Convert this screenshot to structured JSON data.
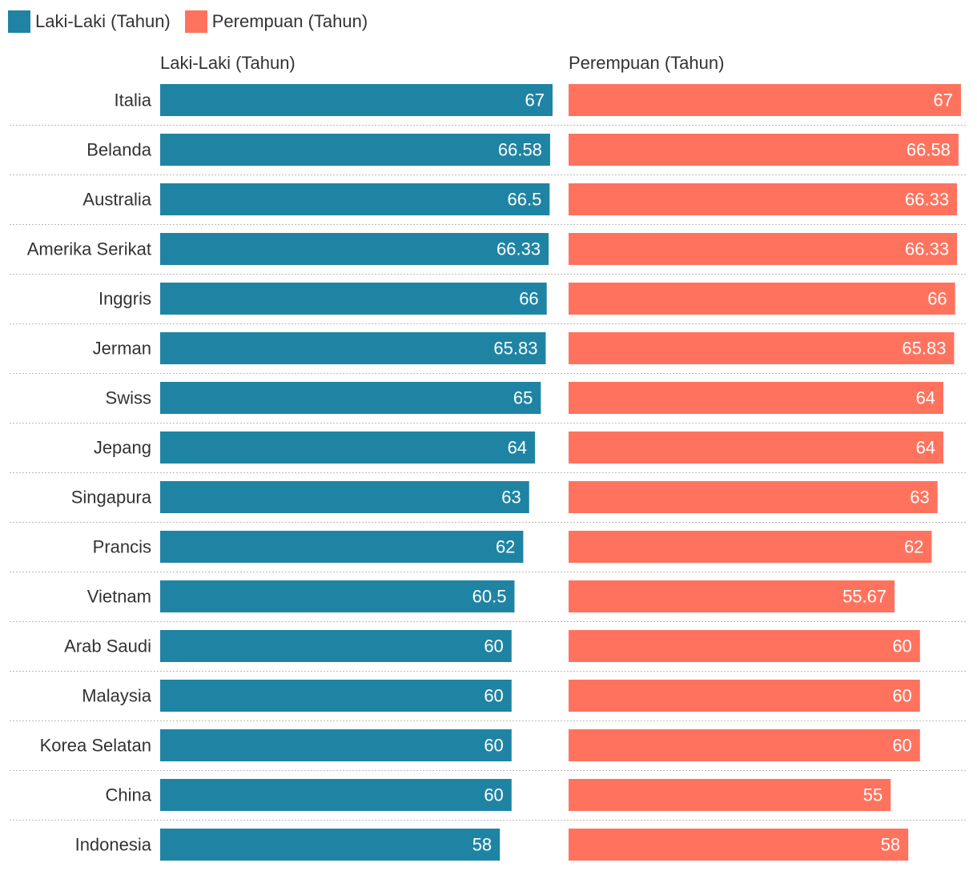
{
  "legend": {
    "male_label": "Laki-Laki (Tahun)",
    "female_label": "Perempuan (Tahun)"
  },
  "headers": {
    "male": "Laki-Laki (Tahun)",
    "female": "Perempuan (Tahun)"
  },
  "colors": {
    "male": "#1f84a3",
    "female": "#ff735e",
    "separator": "#bbbbbb",
    "text": "#333333"
  },
  "chart_data": {
    "type": "bar",
    "categories": [
      "Italia",
      "Belanda",
      "Australia",
      "Amerika Serikat",
      "Inggris",
      "Jerman",
      "Swiss",
      "Jepang",
      "Singapura",
      "Prancis",
      "Vietnam",
      "Arab Saudi",
      "Malaysia",
      "Korea Selatan",
      "China",
      "Indonesia"
    ],
    "series": [
      {
        "name": "Laki-Laki (Tahun)",
        "values": [
          67,
          66.58,
          66.5,
          66.33,
          66,
          65.83,
          65,
          64,
          63,
          62,
          60.5,
          60,
          60,
          60,
          60,
          58
        ]
      },
      {
        "name": "Perempuan (Tahun)",
        "values": [
          67,
          66.58,
          66.33,
          66.33,
          66,
          65.83,
          64,
          64,
          63,
          62,
          55.67,
          60,
          60,
          60,
          55,
          58
        ]
      }
    ],
    "xlim": [
      0,
      67
    ],
    "grid": false,
    "legend_position": "top-left"
  }
}
